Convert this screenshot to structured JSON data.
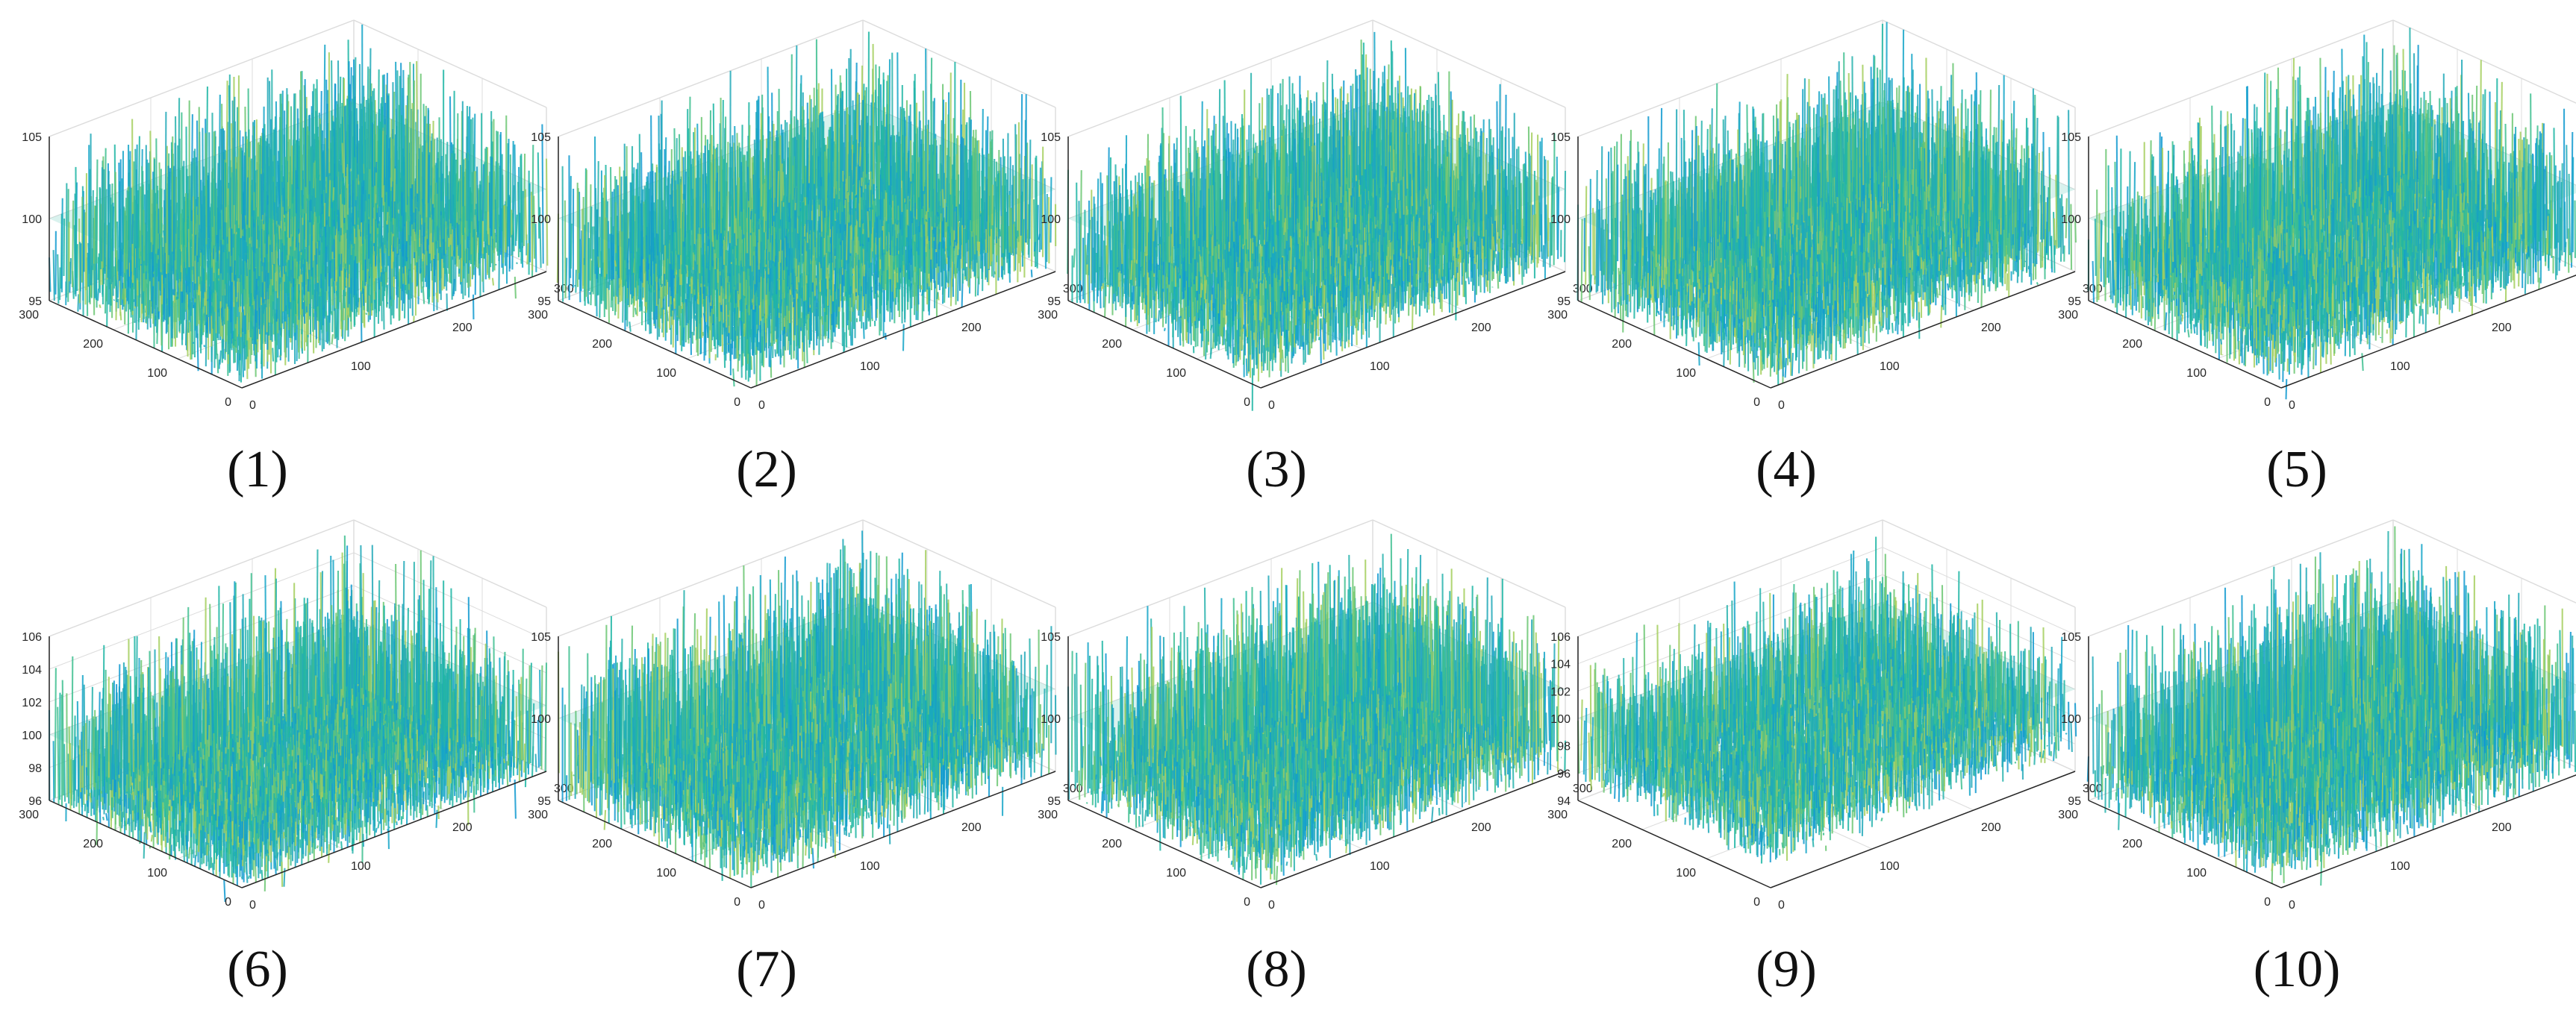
{
  "palette": {
    "surface_colors": [
      "#1fb6a4",
      "#22a9b8",
      "#3fc090",
      "#16a6c8",
      "#6cc773",
      "#27b3ad",
      "#a4cf5e",
      "#129ad0"
    ],
    "axis_color": "#262626",
    "grid_color": "#dcdcdc"
  },
  "chart_data": [
    {
      "type": "surface",
      "caption": "(1)",
      "x_ticks": [
        "0",
        "100",
        "200",
        "300"
      ],
      "y_ticks": [
        "0",
        "100",
        "200",
        "300"
      ],
      "z_ticks": [
        "95",
        "100",
        "105"
      ],
      "zlim": [
        95,
        105
      ],
      "mean": 100,
      "amplitude": 2.4
    },
    {
      "type": "surface",
      "caption": "(2)",
      "x_ticks": [
        "0",
        "100",
        "200",
        "300"
      ],
      "y_ticks": [
        "0",
        "100",
        "200",
        "300"
      ],
      "z_ticks": [
        "95",
        "100",
        "105"
      ],
      "zlim": [
        95,
        105
      ],
      "mean": 100,
      "amplitude": 2.4
    },
    {
      "type": "surface",
      "caption": "(3)",
      "x_ticks": [
        "0",
        "100",
        "200",
        "300"
      ],
      "y_ticks": [
        "0",
        "100",
        "200",
        "300"
      ],
      "z_ticks": [
        "95",
        "100",
        "105"
      ],
      "zlim": [
        95,
        105
      ],
      "mean": 100,
      "amplitude": 2.4
    },
    {
      "type": "surface",
      "caption": "(4)",
      "x_ticks": [
        "0",
        "100",
        "200",
        "300"
      ],
      "y_ticks": [
        "0",
        "100",
        "200",
        "300"
      ],
      "z_ticks": [
        "95",
        "100",
        "105"
      ],
      "zlim": [
        95,
        105
      ],
      "mean": 100,
      "amplitude": 2.4
    },
    {
      "type": "surface",
      "caption": "(5)",
      "x_ticks": [
        "0",
        "100",
        "200",
        "300"
      ],
      "y_ticks": [
        "0",
        "100",
        "200",
        "300"
      ],
      "z_ticks": [
        "95",
        "100",
        "105"
      ],
      "zlim": [
        95,
        105
      ],
      "mean": 100,
      "amplitude": 2.4
    },
    {
      "type": "surface",
      "caption": "(6)",
      "x_ticks": [
        "0",
        "100",
        "200",
        "300"
      ],
      "y_ticks": [
        "0",
        "100",
        "200",
        "300"
      ],
      "z_ticks": [
        "96",
        "98",
        "100",
        "102",
        "104",
        "106"
      ],
      "zlim": [
        96,
        106
      ],
      "mean": 100,
      "amplitude": 2.6
    },
    {
      "type": "surface",
      "caption": "(7)",
      "x_ticks": [
        "0",
        "100",
        "200",
        "300"
      ],
      "y_ticks": [
        "0",
        "100",
        "200",
        "300"
      ],
      "z_ticks": [
        "95",
        "100",
        "105"
      ],
      "zlim": [
        95,
        105
      ],
      "mean": 100,
      "amplitude": 2.4
    },
    {
      "type": "surface",
      "caption": "(8)",
      "x_ticks": [
        "0",
        "100",
        "200",
        "300"
      ],
      "y_ticks": [
        "0",
        "100",
        "200",
        "300"
      ],
      "z_ticks": [
        "95",
        "100",
        "105"
      ],
      "zlim": [
        95,
        105
      ],
      "mean": 100,
      "amplitude": 2.4
    },
    {
      "type": "surface",
      "caption": "(9)",
      "x_ticks": [
        "0",
        "100",
        "200",
        "300"
      ],
      "y_ticks": [
        "0",
        "100",
        "200",
        "300"
      ],
      "z_ticks": [
        "94",
        "96",
        "98",
        "100",
        "102",
        "104",
        "106"
      ],
      "zlim": [
        94,
        106
      ],
      "mean": 100,
      "amplitude": 2.2
    },
    {
      "type": "surface",
      "caption": "(10)",
      "x_ticks": [
        "0",
        "100",
        "200",
        "300"
      ],
      "y_ticks": [
        "0",
        "100",
        "200",
        "300"
      ],
      "z_ticks": [
        "95",
        "100",
        "105"
      ],
      "zlim": [
        95,
        105
      ],
      "mean": 100,
      "amplitude": 2.4
    }
  ]
}
